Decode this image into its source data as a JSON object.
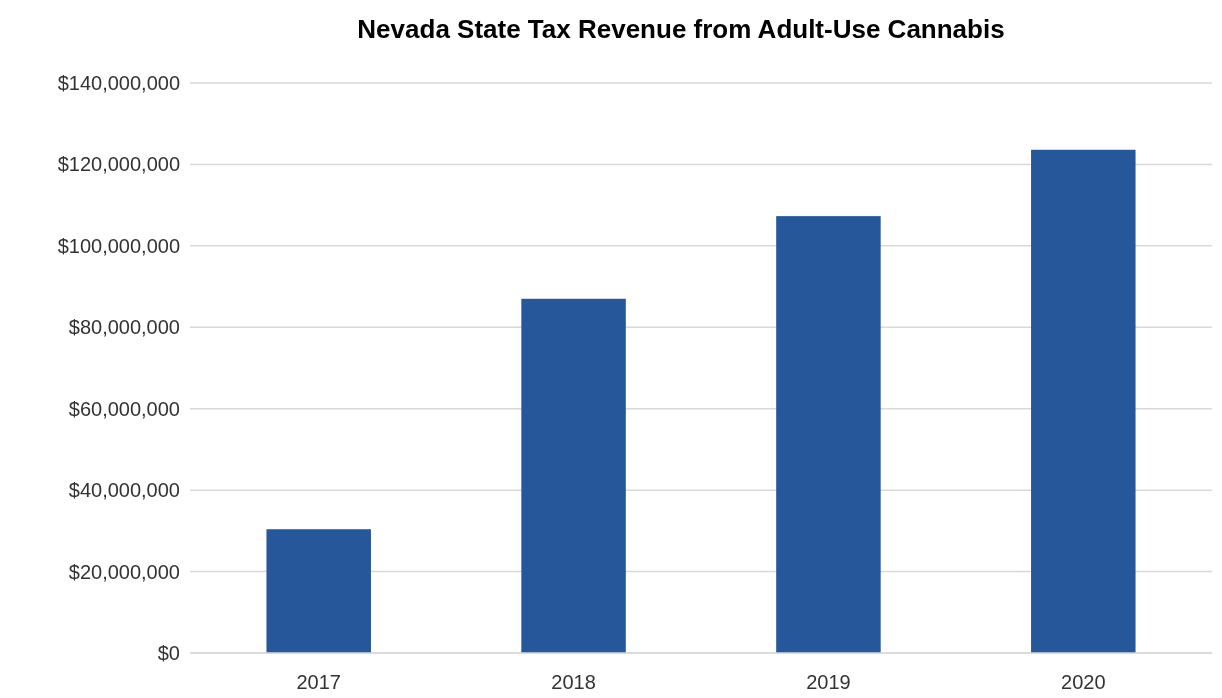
{
  "chart_data": {
    "type": "bar",
    "title": "Nevada State Tax Revenue from Adult-Use Cannabis",
    "categories": [
      "2017",
      "2018",
      "2019",
      "2020"
    ],
    "values": [
      30400000,
      87000000,
      107300000,
      123600000
    ],
    "color": "#27579b",
    "ylim": [
      0,
      140000000
    ],
    "yticks": [
      {
        "value": 0,
        "label": "$0"
      },
      {
        "value": 20000000,
        "label": "$20,000,000"
      },
      {
        "value": 40000000,
        "label": "$40,000,000"
      },
      {
        "value": 60000000,
        "label": "$60,000,000"
      },
      {
        "value": 80000000,
        "label": "$80,000,000"
      },
      {
        "value": 100000000,
        "label": "$100,000,000"
      },
      {
        "value": 120000000,
        "label": "$120,000,000"
      },
      {
        "value": 140000000,
        "label": "$140,000,000"
      }
    ],
    "grid": "y"
  }
}
